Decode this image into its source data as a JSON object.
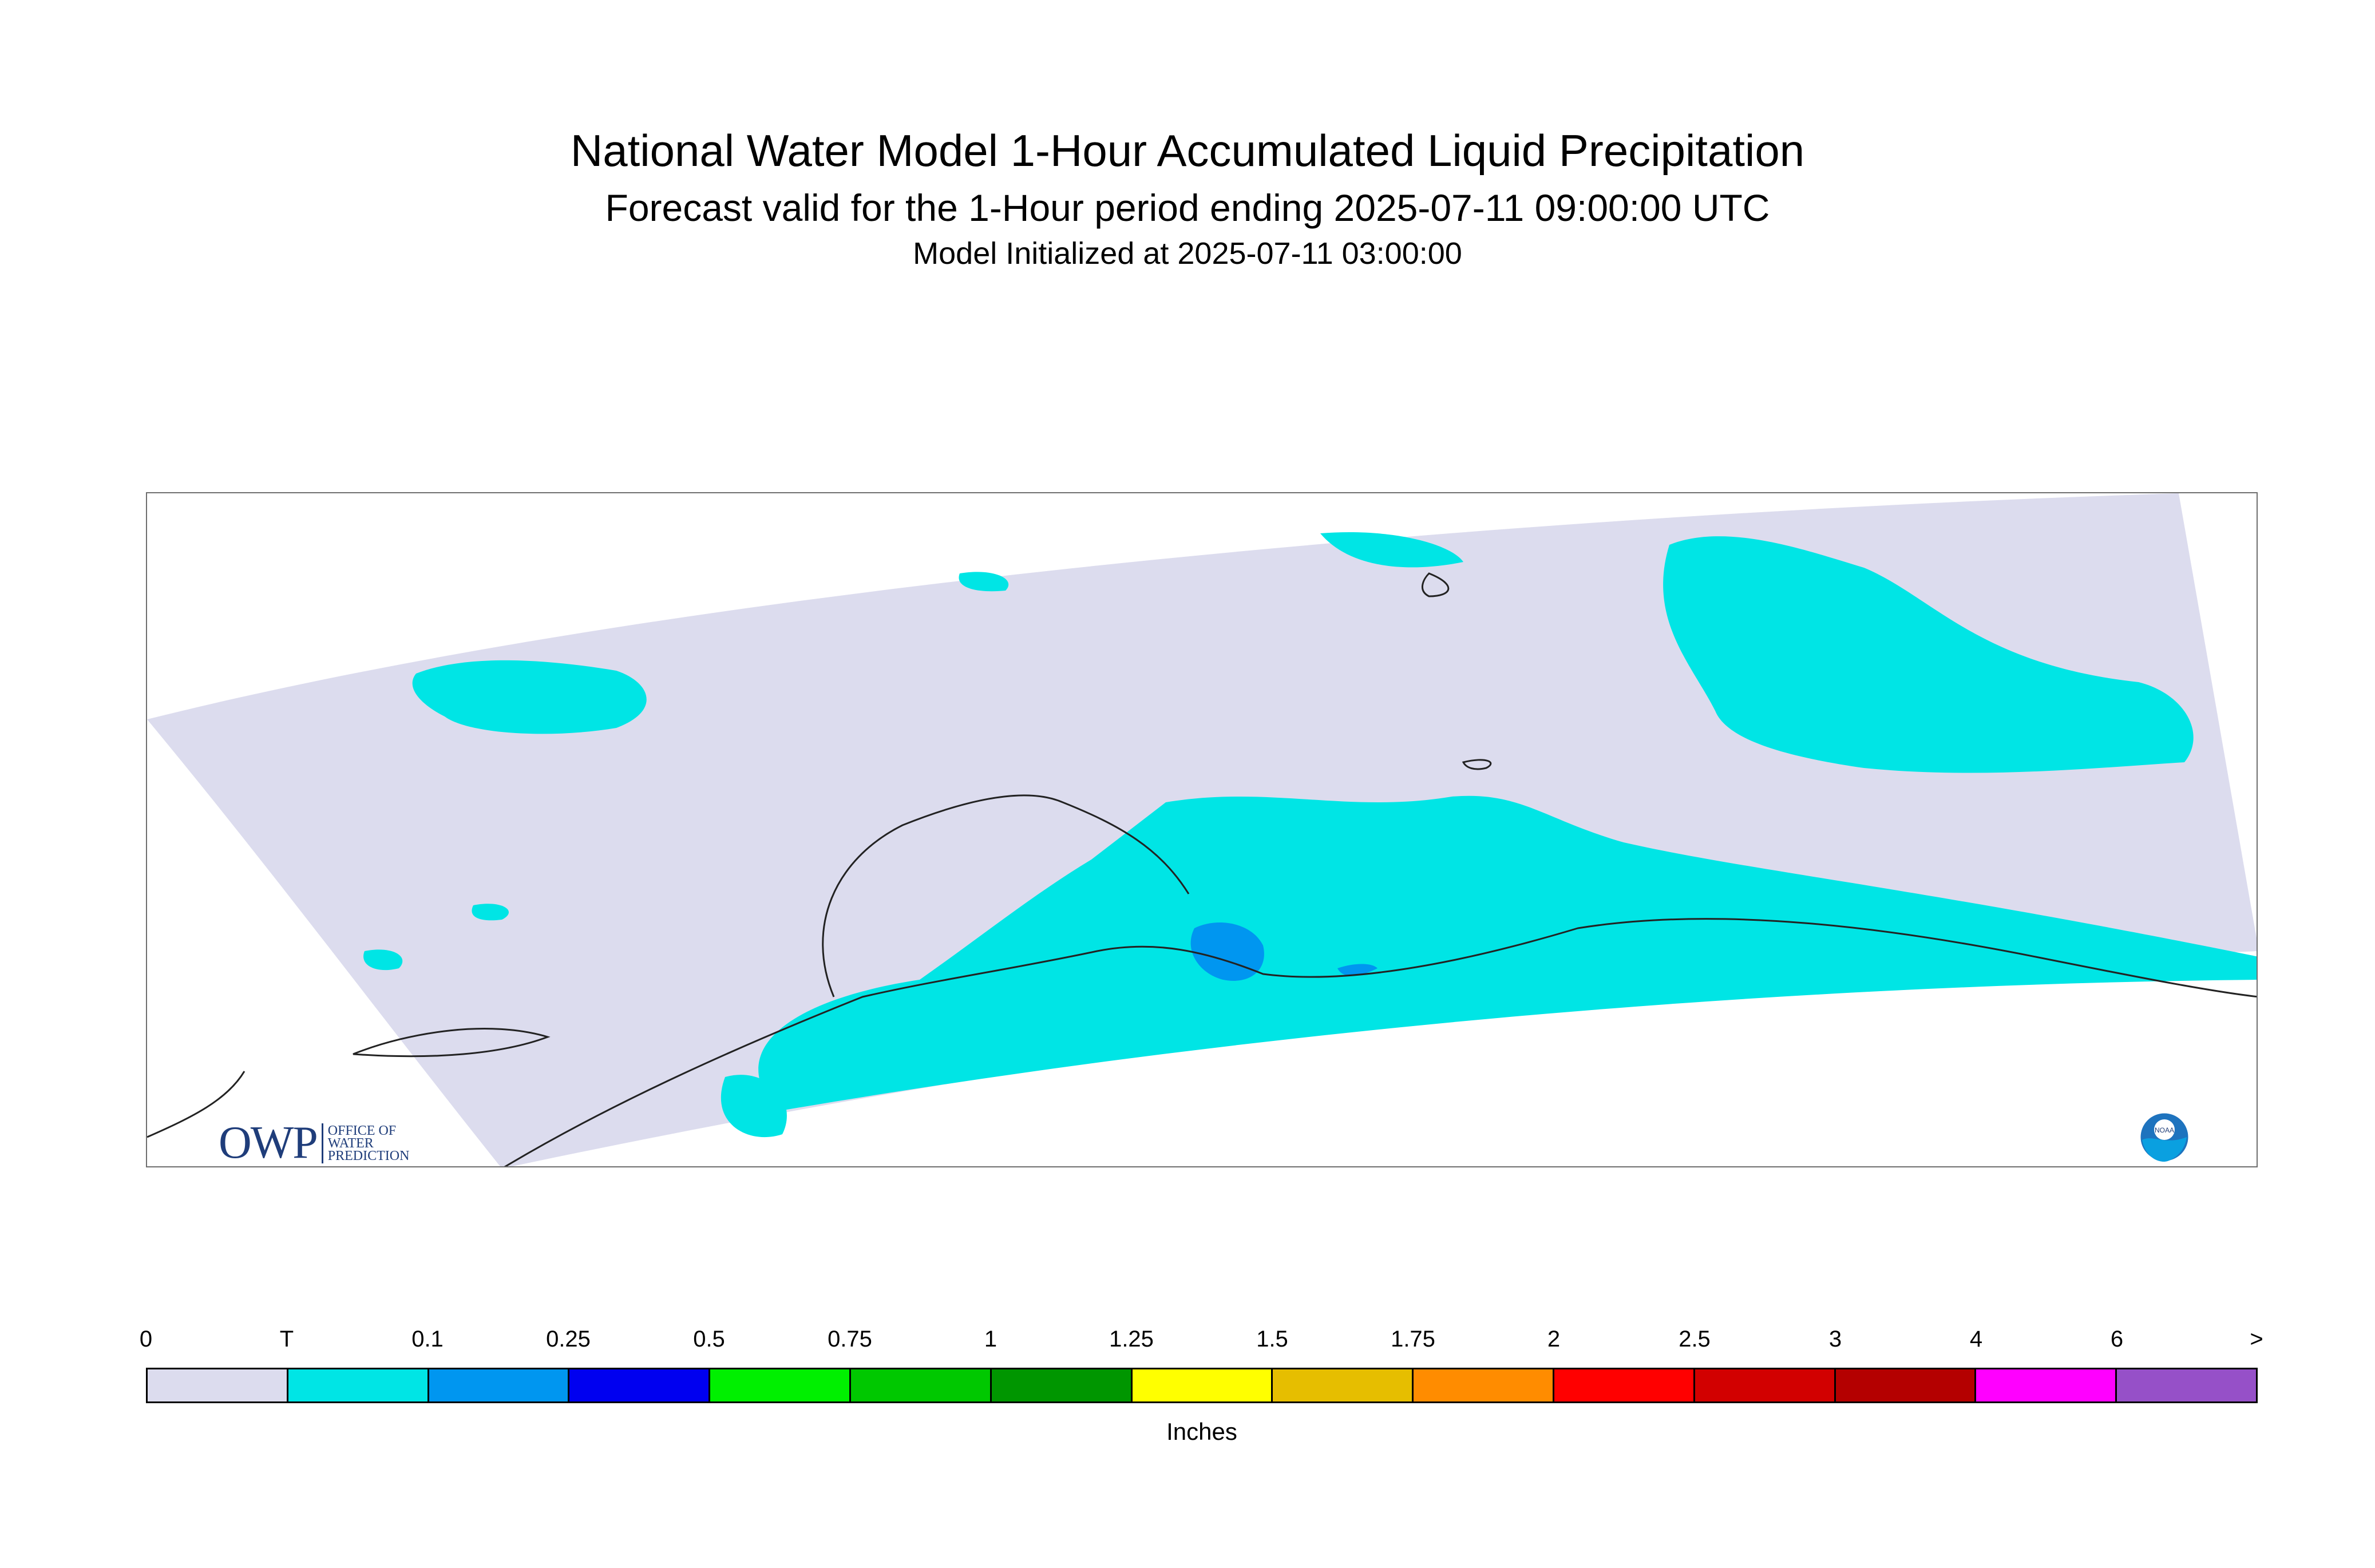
{
  "title": "National Water Model 1-Hour Accumulated Liquid Precipitation",
  "subtitle": "Forecast valid for the 1-Hour period ending 2025-07-11 09:00:00 UTC",
  "init_line": "Model Initialized at 2025-07-11 03:00:00",
  "logos": {
    "owp_letters": "OWP",
    "owp_text": [
      "OFFICE OF",
      "WATER",
      "PREDICTION"
    ],
    "noaa": "NOAA"
  },
  "colors": {
    "background_zero": "#dcdcee",
    "trace": "#00e5e5",
    "light_blue": "#0096f0",
    "coastline": "#222222"
  },
  "legend": {
    "ticks": [
      "0",
      "T",
      "0.1",
      "0.25",
      "0.5",
      "0.75",
      "1",
      "1.25",
      "1.5",
      "1.75",
      "2",
      "2.5",
      "3",
      "4",
      "6",
      ">"
    ],
    "colors": [
      "#dcdcee",
      "#00e5e5",
      "#0096f0",
      "#0000f0",
      "#00f000",
      "#00c800",
      "#009600",
      "#ffff00",
      "#e6be00",
      "#ff8c00",
      "#ff0000",
      "#d20000",
      "#b40000",
      "#ff00ff",
      "#9650c8"
    ],
    "units": "Inches"
  }
}
